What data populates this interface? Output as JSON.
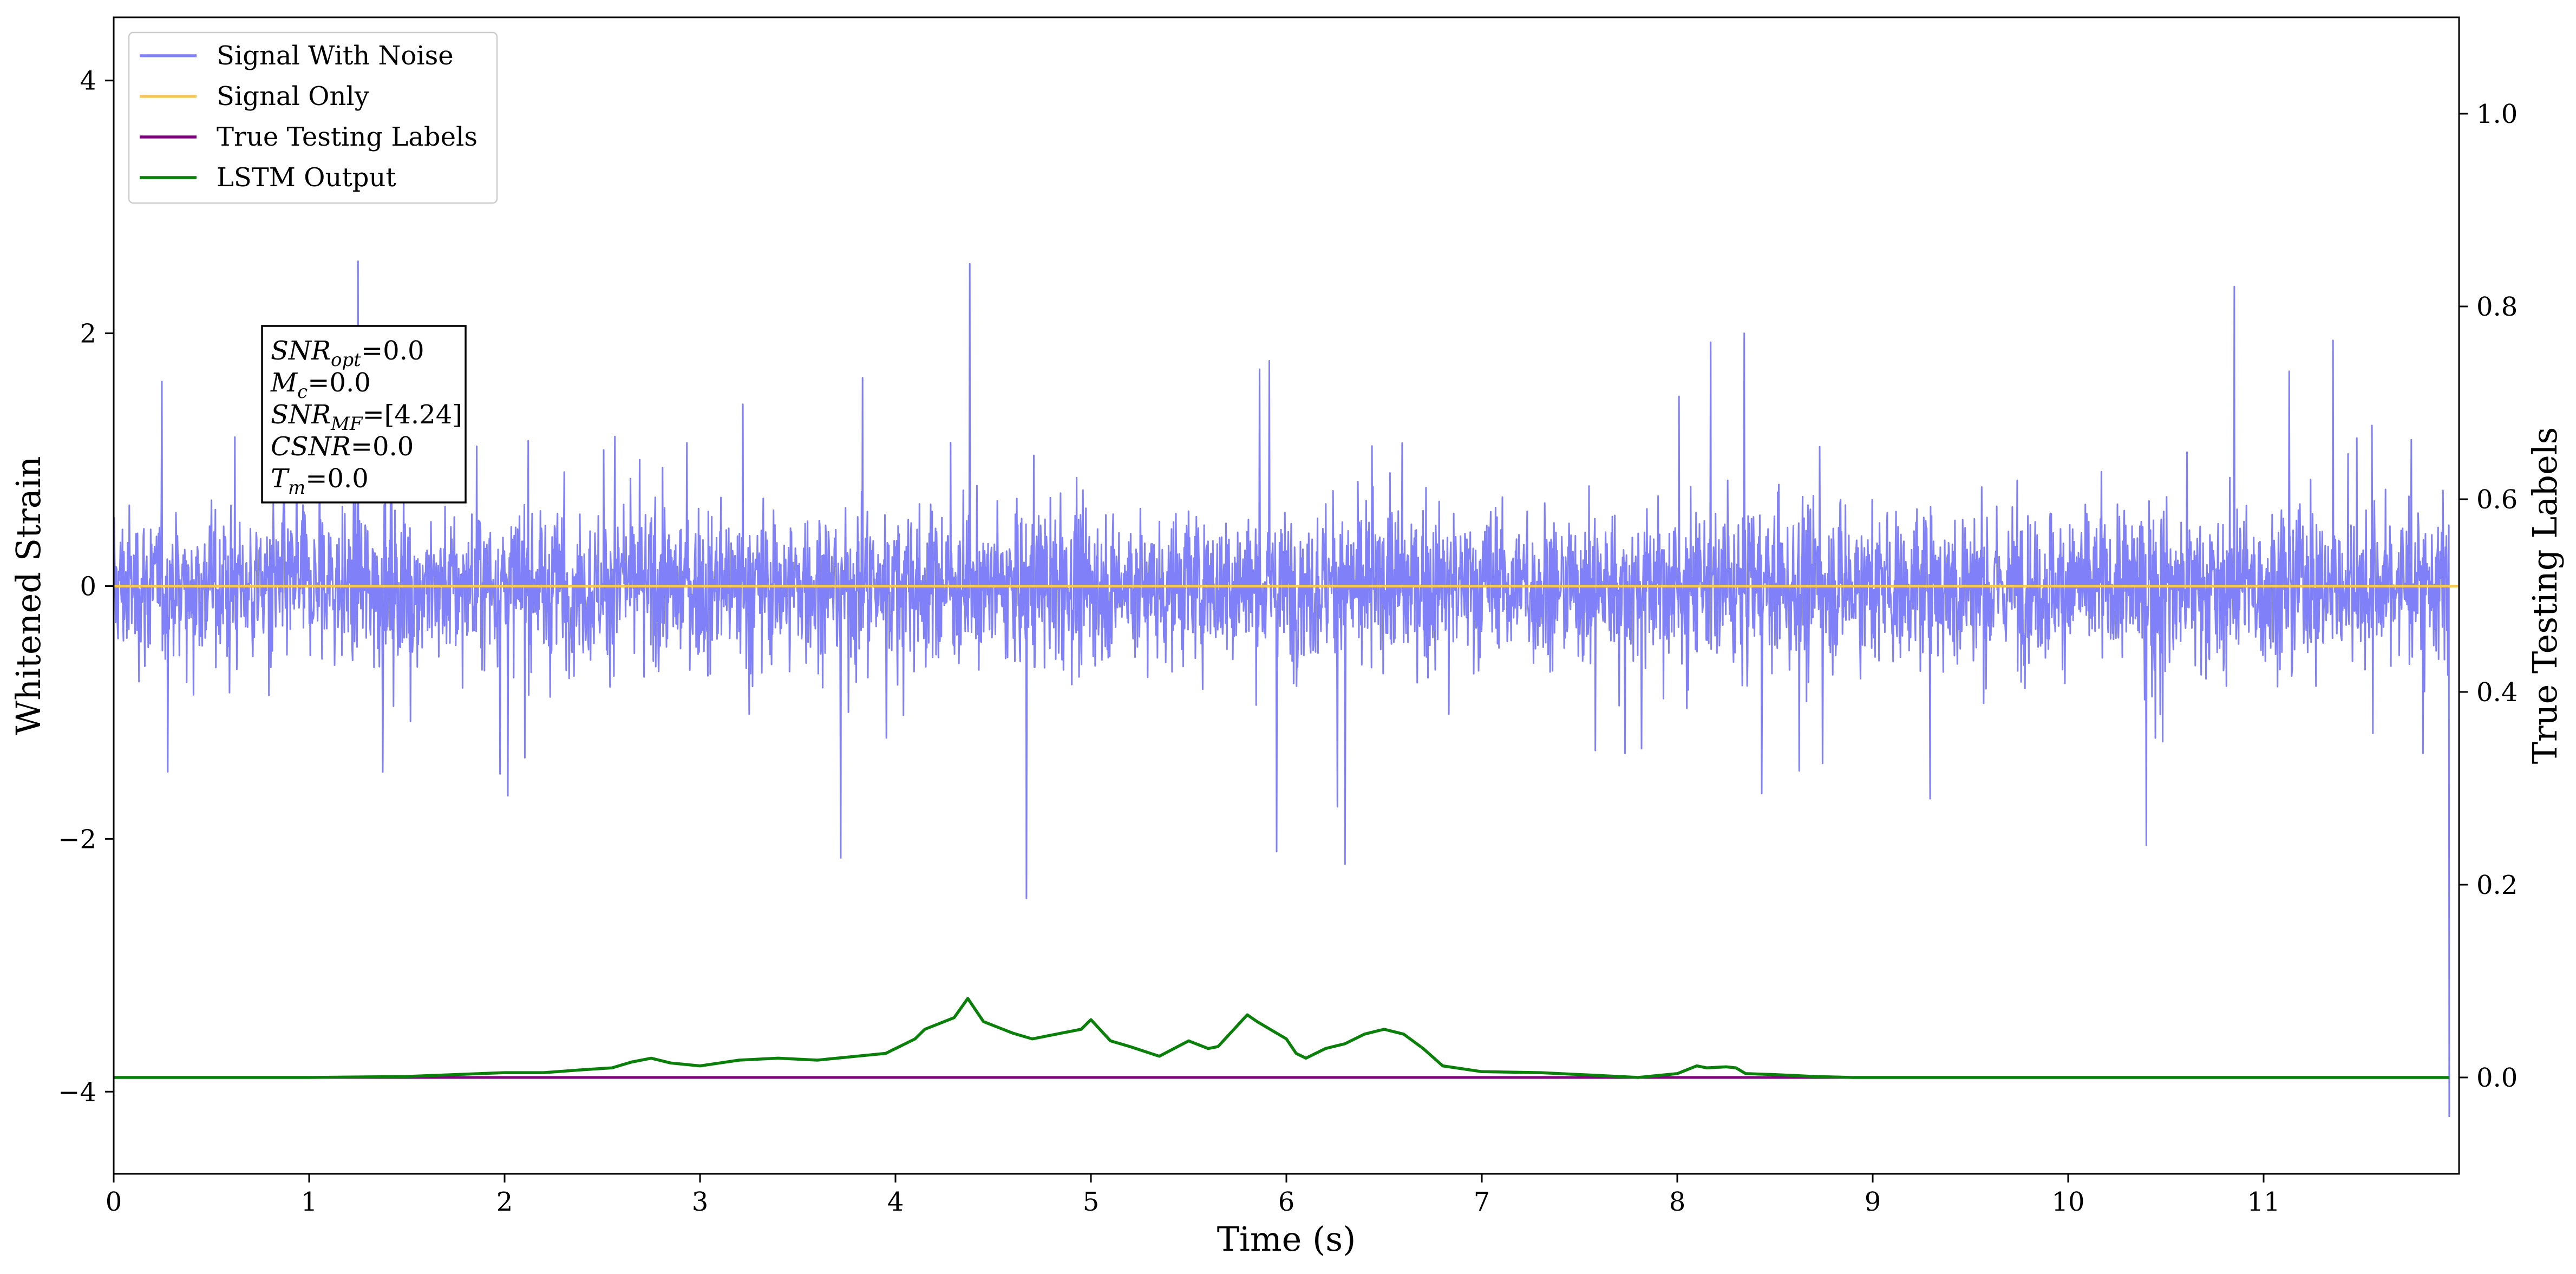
{
  "chart_data": {
    "type": "line",
    "title": "",
    "xlabel": "Time (s)",
    "ylabel": "Whitened Strain",
    "y2label": "True Testing Labels",
    "xlim": [
      0,
      12
    ],
    "ylim": [
      -4.65,
      4.5
    ],
    "y2lim": [
      -0.1,
      1.1
    ],
    "x_ticks": [
      0,
      1,
      2,
      3,
      4,
      5,
      6,
      7,
      8,
      9,
      10,
      11
    ],
    "y_ticks": [
      -4,
      -2,
      0,
      2,
      4
    ],
    "y_tick_labels": [
      "−4",
      "−2",
      "0",
      "2",
      "4"
    ],
    "y2_ticks": [
      0.0,
      0.2,
      0.4,
      0.6,
      0.8,
      1.0
    ],
    "y2_tick_labels": [
      "0.0",
      "0.2",
      "0.4",
      "0.6",
      "0.8",
      "1.0"
    ],
    "grid": false,
    "legend_position": "top-left",
    "series": [
      {
        "name": "Signal With Noise",
        "axis": "left",
        "color": "#8080f8",
        "description_values": "Gaussian-like whitened noise, envelope about ±1.2 with spikes up to ±2.5",
        "peaks": [
          [
            1.25,
            2.57
          ],
          [
            4.38,
            2.55
          ],
          [
            10.85,
            2.37
          ],
          [
            4.67,
            -2.47
          ],
          [
            3.72,
            -2.15
          ],
          [
            6.3,
            -2.2
          ],
          [
            5.95,
            -2.1
          ],
          [
            10.4,
            -2.05
          ],
          [
            11.95,
            -4.2
          ]
        ]
      },
      {
        "name": "Signal Only",
        "axis": "left",
        "color": "#f6c95b",
        "x": [
          0,
          12
        ],
        "y": [
          0,
          0
        ]
      },
      {
        "name": "True Testing Labels",
        "axis": "right",
        "color": "#800080",
        "x": [
          0,
          11.95
        ],
        "y": [
          0,
          0
        ]
      },
      {
        "name": "LSTM Output",
        "axis": "right",
        "color": "#0a800a",
        "x": [
          0,
          1.0,
          1.5,
          2.0,
          2.2,
          2.4,
          2.55,
          2.65,
          2.75,
          2.85,
          3.0,
          3.1,
          3.2,
          3.4,
          3.6,
          3.8,
          3.95,
          4.0,
          4.1,
          4.15,
          4.3,
          4.37,
          4.45,
          4.55,
          4.6,
          4.7,
          4.75,
          4.85,
          4.95,
          5.0,
          5.1,
          5.2,
          5.35,
          5.5,
          5.6,
          5.65,
          5.8,
          5.85,
          6.0,
          6.05,
          6.1,
          6.2,
          6.3,
          6.4,
          6.5,
          6.6,
          6.7,
          6.8,
          7.0,
          7.3,
          7.6,
          7.8,
          8.0,
          8.1,
          8.15,
          8.25,
          8.3,
          8.35,
          8.5,
          8.6,
          8.7,
          8.9,
          9.2,
          11.95
        ],
        "y": [
          0.0,
          0.0,
          0.001,
          0.005,
          0.005,
          0.008,
          0.01,
          0.016,
          0.02,
          0.015,
          0.012,
          0.015,
          0.018,
          0.02,
          0.018,
          0.022,
          0.025,
          0.03,
          0.04,
          0.05,
          0.062,
          0.082,
          0.058,
          0.05,
          0.046,
          0.04,
          0.042,
          0.046,
          0.05,
          0.06,
          0.038,
          0.032,
          0.022,
          0.038,
          0.03,
          0.032,
          0.065,
          0.058,
          0.04,
          0.025,
          0.02,
          0.03,
          0.035,
          0.045,
          0.05,
          0.045,
          0.03,
          0.012,
          0.006,
          0.005,
          0.002,
          0.0,
          0.004,
          0.012,
          0.01,
          0.011,
          0.01,
          0.004,
          0.003,
          0.002,
          0.001,
          0.0,
          0.0,
          0.0
        ]
      }
    ],
    "annotation": {
      "lines": [
        {
          "base": "SNR",
          "sub": "opt",
          "value": "=0.0"
        },
        {
          "base": "M",
          "sub": "c",
          "value": "=0.0"
        },
        {
          "base": "SNR",
          "sub": "MF",
          "value": "=[4.24]"
        },
        {
          "base": "CSNR",
          "sub": "",
          "value": "=0.0"
        },
        {
          "base": "T",
          "sub": "m",
          "value": "=0.0"
        }
      ]
    }
  }
}
